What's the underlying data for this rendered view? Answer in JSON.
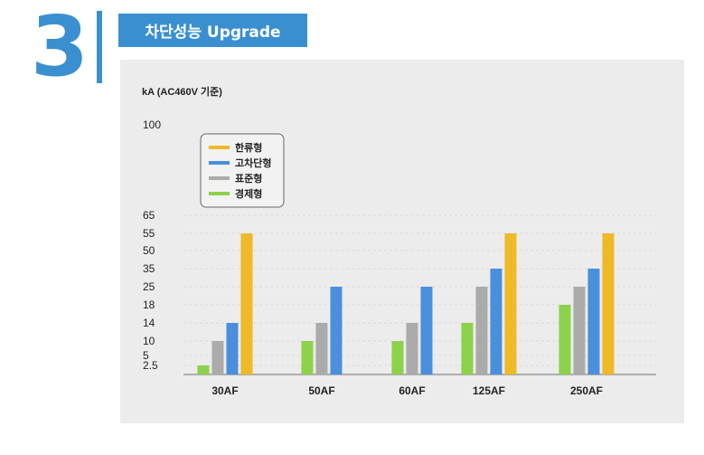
{
  "header": {
    "number": "3",
    "title": "차단성능 Upgrade"
  },
  "colors": {
    "accent": "#3a8fd1",
    "series": [
      "#efb927",
      "#4a8fdc",
      "#ababab",
      "#8cd24a"
    ]
  },
  "chart_data": {
    "type": "bar",
    "ylabel": "kA (AC460V 기준)",
    "y_ticks": [
      "2.5",
      "5",
      "10",
      "14",
      "18",
      "25",
      "35",
      "50",
      "55",
      "65",
      "100"
    ],
    "y_scale": "categorical ticks (non-linear)",
    "categories": [
      "30AF",
      "50AF",
      "60AF",
      "125AF",
      "250AF"
    ],
    "series": [
      {
        "name": "한류형",
        "values": [
          55,
          null,
          null,
          55,
          55
        ]
      },
      {
        "name": "고차단형",
        "values": [
          14,
          25,
          25,
          35,
          35
        ]
      },
      {
        "name": "표준형",
        "values": [
          10,
          14,
          14,
          25,
          25
        ]
      },
      {
        "name": "경제형",
        "values": [
          2.5,
          10,
          10,
          14,
          18
        ]
      }
    ],
    "legend": "top-left",
    "grid": true
  }
}
